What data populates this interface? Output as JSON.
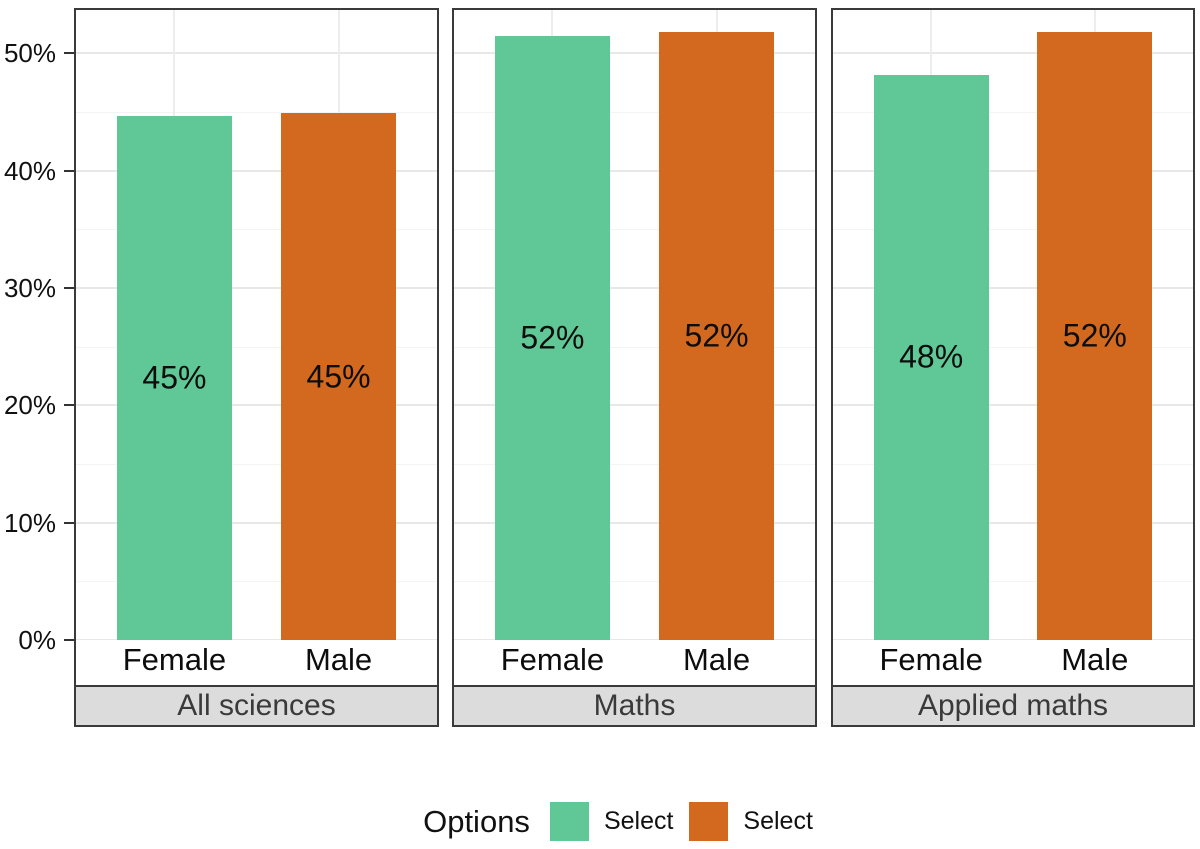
{
  "chart_data": {
    "type": "bar",
    "title": "",
    "xlabel": "",
    "ylabel": "",
    "categories": [
      "Female",
      "Male"
    ],
    "series_names": [
      "Select",
      "Select"
    ],
    "colors": [
      "#5fc896",
      "#d2691e"
    ],
    "facets": [
      {
        "label": "All sciences",
        "values": [
          44.7,
          44.9
        ],
        "bar_labels": [
          "45%",
          "45%"
        ]
      },
      {
        "label": "Maths",
        "values": [
          51.5,
          51.8
        ],
        "bar_labels": [
          "52%",
          "52%"
        ]
      },
      {
        "label": "Applied maths",
        "values": [
          48.2,
          51.8
        ],
        "bar_labels": [
          "48%",
          "52%"
        ]
      }
    ],
    "y_ticks": [
      {
        "value": 0,
        "label": "0%"
      },
      {
        "value": 10,
        "label": "10%"
      },
      {
        "value": 20,
        "label": "20%"
      },
      {
        "value": 30,
        "label": "30%"
      },
      {
        "value": 40,
        "label": "40%"
      },
      {
        "value": 50,
        "label": "50%"
      }
    ],
    "ylim": [
      0,
      53.7
    ],
    "grid": {
      "major_step": 10,
      "minor_step": 5,
      "vertical_at_categories": true
    },
    "legend": {
      "title": "Options",
      "position": "bottom",
      "items": [
        {
          "label": "Select",
          "color": "#5fc896"
        },
        {
          "label": "Select",
          "color": "#d2691e"
        }
      ]
    },
    "facet_strip_position": "bottom"
  },
  "style_colors": {
    "bar_green": "#5fc896",
    "bar_orange": "#d2691e",
    "panel_border": "#3a3a3a",
    "strip_background": "#dcdcdc",
    "strip_text": "#3a3a3a",
    "grid_major": "#e8e8e8",
    "grid_minor": "#f4f4f4",
    "axis_text": "#111111"
  }
}
